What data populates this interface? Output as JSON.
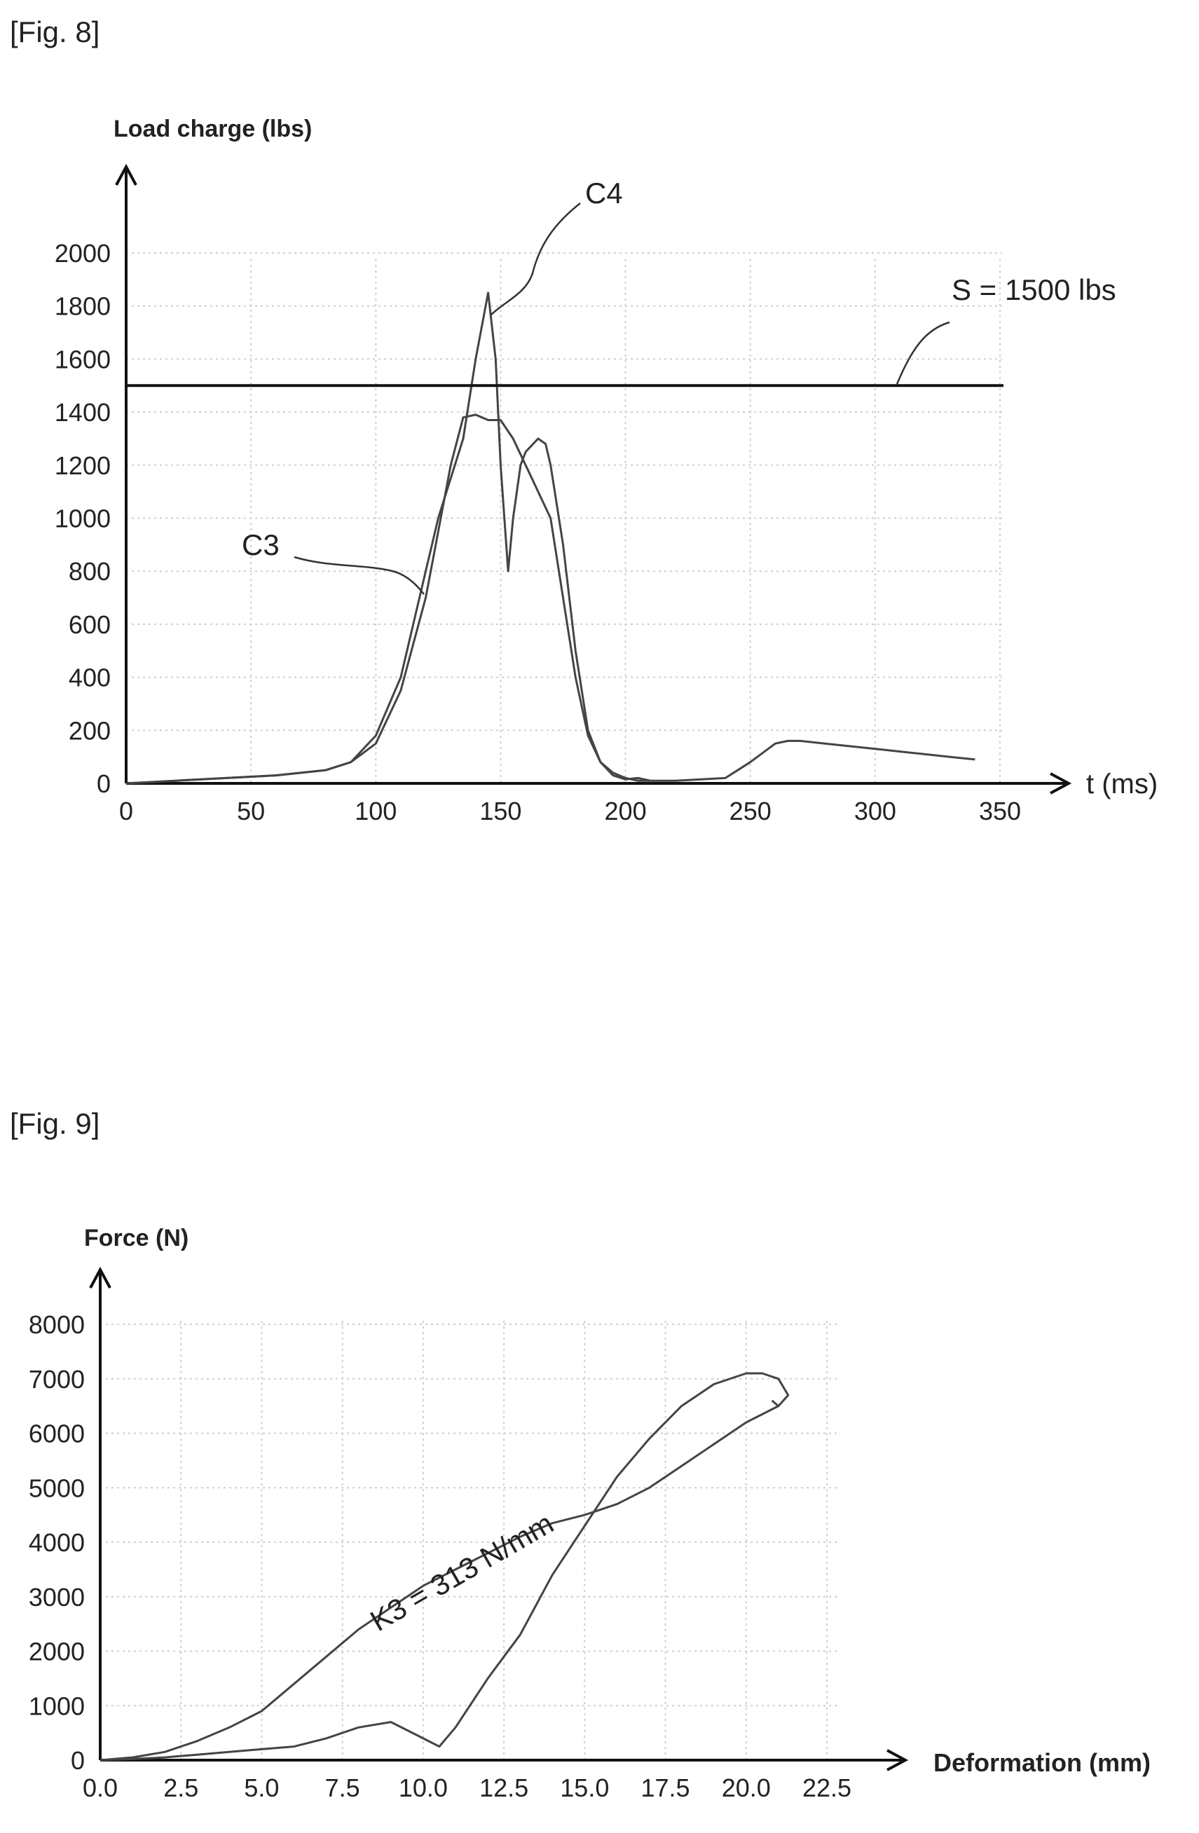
{
  "figures": [
    {
      "label": "[Fig. 8]"
    },
    {
      "label": "[Fig. 9]"
    }
  ],
  "chart_data": [
    {
      "type": "line",
      "ylabel": "Load charge (lbs)",
      "xlabel": "t (ms)",
      "xlim": [
        0,
        350
      ],
      "ylim": [
        0,
        2000
      ],
      "xticks": [
        "0",
        "50",
        "100",
        "150",
        "200",
        "250",
        "300",
        "350"
      ],
      "yticks": [
        "0",
        "200",
        "400",
        "600",
        "800",
        "1000",
        "1200",
        "1400",
        "1600",
        "1800",
        "2000"
      ],
      "grid": true,
      "threshold": {
        "label": "S = 1500 lbs",
        "value": 1500
      },
      "series": [
        {
          "name": "C3",
          "x": [
            0,
            20,
            40,
            60,
            80,
            90,
            100,
            110,
            120,
            125,
            130,
            135,
            140,
            145,
            150,
            155,
            160,
            165,
            170,
            175,
            180,
            185,
            190,
            195,
            200,
            205,
            210,
            220,
            240,
            250,
            260,
            265,
            270,
            280,
            290,
            300,
            310,
            320,
            330,
            340
          ],
          "y": [
            0,
            10,
            20,
            30,
            50,
            80,
            150,
            350,
            700,
            950,
            1200,
            1380,
            1390,
            1370,
            1370,
            1300,
            1200,
            1100,
            1000,
            700,
            400,
            180,
            80,
            40,
            20,
            10,
            10,
            10,
            20,
            80,
            150,
            160,
            160,
            150,
            140,
            130,
            120,
            110,
            100,
            90
          ]
        },
        {
          "name": "C4",
          "x": [
            0,
            20,
            40,
            60,
            80,
            90,
            100,
            110,
            115,
            120,
            125,
            130,
            135,
            140,
            145,
            148,
            150,
            153,
            155,
            158,
            160,
            165,
            168,
            170,
            175,
            180,
            185,
            190,
            195,
            200,
            205,
            210
          ],
          "y": [
            0,
            10,
            20,
            30,
            50,
            80,
            180,
            400,
            600,
            800,
            1000,
            1150,
            1300,
            1600,
            1850,
            1600,
            1200,
            800,
            1000,
            1200,
            1250,
            1300,
            1280,
            1200,
            900,
            500,
            200,
            80,
            30,
            15,
            20,
            10
          ]
        }
      ]
    },
    {
      "type": "line",
      "ylabel": "Force (N)",
      "xlabel": "Deformation (mm)",
      "xlim": [
        0,
        22.5
      ],
      "ylim": [
        0,
        8000
      ],
      "xticks": [
        "0.0",
        "2.5",
        "5.0",
        "7.5",
        "10.0",
        "12.5",
        "15.0",
        "17.5",
        "20.0",
        "22.5"
      ],
      "yticks": [
        "0",
        "1000",
        "2000",
        "3000",
        "4000",
        "5000",
        "6000",
        "7000",
        "8000"
      ],
      "grid": true,
      "annotation": "K3 = 313 N/mm",
      "series": [
        {
          "name": "",
          "x": [
            0,
            1,
            2,
            3,
            4,
            5,
            6,
            7,
            8,
            9,
            10,
            11,
            12,
            13,
            14,
            15,
            16,
            17,
            18,
            19,
            20,
            21
          ],
          "y": [
            0,
            50,
            150,
            350,
            600,
            900,
            1400,
            1900,
            2400,
            2800,
            3200,
            3500,
            3800,
            4100,
            4350,
            4500,
            4700,
            5000,
            5400,
            5800,
            6200,
            6500
          ]
        },
        {
          "name": "",
          "x": [
            0,
            1,
            2,
            3,
            4,
            5,
            6,
            7,
            8,
            9,
            10,
            10.5,
            11,
            12,
            12.5,
            13,
            14,
            15,
            16,
            17,
            18,
            19,
            20,
            20.5,
            21,
            21.3,
            21,
            20.8
          ],
          "y": [
            0,
            20,
            50,
            100,
            150,
            200,
            250,
            400,
            600,
            700,
            400,
            250,
            600,
            1500,
            1900,
            2300,
            3400,
            4300,
            5200,
            5900,
            6500,
            6900,
            7100,
            7100,
            7000,
            6700,
            6500,
            6600
          ]
        }
      ]
    }
  ]
}
